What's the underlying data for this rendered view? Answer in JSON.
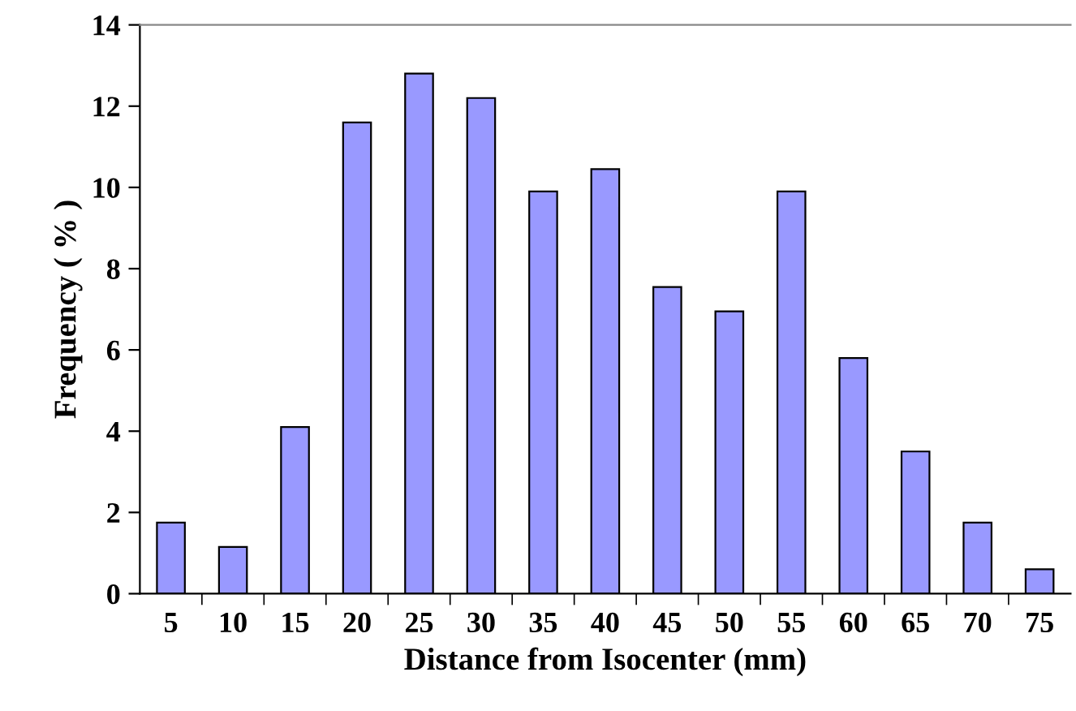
{
  "chart_data": {
    "type": "bar",
    "xlabel": "Distance from Isocenter (mm)",
    "ylabel": "Frequency ( % )",
    "categories": [
      "5",
      "10",
      "15",
      "20",
      "25",
      "30",
      "35",
      "40",
      "45",
      "50",
      "55",
      "60",
      "65",
      "70",
      "75"
    ],
    "values": [
      1.75,
      1.15,
      4.1,
      11.6,
      12.8,
      12.2,
      9.9,
      10.45,
      7.55,
      6.95,
      9.9,
      5.8,
      3.5,
      1.75,
      0.6
    ],
    "color": "#9999ff",
    "ylim": [
      0,
      14
    ],
    "yticks": [
      0,
      2,
      4,
      6,
      8,
      10,
      12,
      14
    ],
    "grid": false,
    "legend": false
  }
}
